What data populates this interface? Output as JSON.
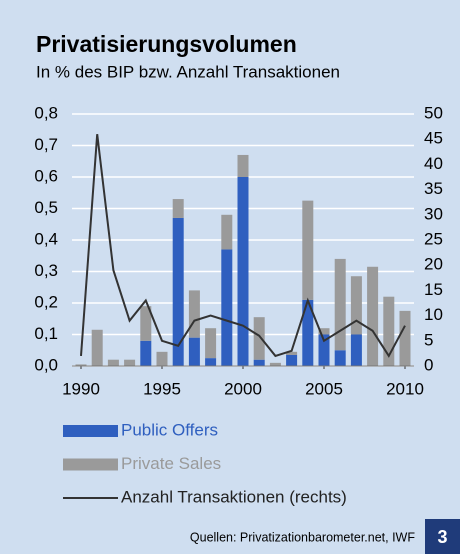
{
  "chart_data": {
    "type": "bar",
    "title": "Privatisierungsvolumen",
    "subtitle": "In % des BIP bzw. Anzahl Transaktionen",
    "x": [
      1990,
      1991,
      1992,
      1993,
      1994,
      1995,
      1996,
      1997,
      1998,
      1999,
      2000,
      2001,
      2002,
      2003,
      2004,
      2005,
      2006,
      2007,
      2008,
      2009,
      2010
    ],
    "stacked": true,
    "series": [
      {
        "name": "Public Offers",
        "color": "#2f5fbf",
        "values": [
          0,
          0,
          0,
          0,
          0.08,
          0,
          0.47,
          0.09,
          0.025,
          0.37,
          0.6,
          0.02,
          0,
          0.035,
          0.21,
          0.1,
          0.05,
          0.1,
          0,
          0,
          0
        ]
      },
      {
        "name": "Private Sales",
        "color": "#9a9a9a",
        "values": [
          0.005,
          0.115,
          0.02,
          0.02,
          0.11,
          0.045,
          0.06,
          0.15,
          0.095,
          0.11,
          0.07,
          0.135,
          0.01,
          0.01,
          0.315,
          0.02,
          0.29,
          0.185,
          0.315,
          0.22,
          0.175
        ]
      },
      {
        "name": "Anzahl Transaktionen (rechts)",
        "color": "#333333",
        "type": "line",
        "axis": "y2",
        "values": [
          2,
          46,
          19,
          9,
          13,
          5,
          4,
          9,
          10,
          9,
          8,
          6,
          2,
          3,
          13,
          5,
          7,
          9,
          7,
          2,
          8
        ]
      }
    ],
    "xlim": [
      1990,
      2010
    ],
    "xticks": [
      1990,
      1995,
      2000,
      2005,
      2010
    ],
    "ylim": [
      0,
      0.8
    ],
    "yticks": [
      {
        "value": 0,
        "label": "0,0"
      },
      {
        "value": 0.1,
        "label": "0,1"
      },
      {
        "value": 0.2,
        "label": "0,2"
      },
      {
        "value": 0.3,
        "label": "0,3"
      },
      {
        "value": 0.4,
        "label": "0,4"
      },
      {
        "value": 0.5,
        "label": "0,5"
      },
      {
        "value": 0.6,
        "label": "0,6"
      },
      {
        "value": 0.7,
        "label": "0,7"
      },
      {
        "value": 0.8,
        "label": "0,8"
      }
    ],
    "y2lim": [
      0,
      50
    ],
    "y2ticks": [
      0,
      5,
      10,
      15,
      20,
      25,
      30,
      35,
      40,
      45,
      50
    ],
    "grid": true,
    "source": "Quellen: Privatizationbarometer.net, IWF",
    "page_number": "3"
  }
}
